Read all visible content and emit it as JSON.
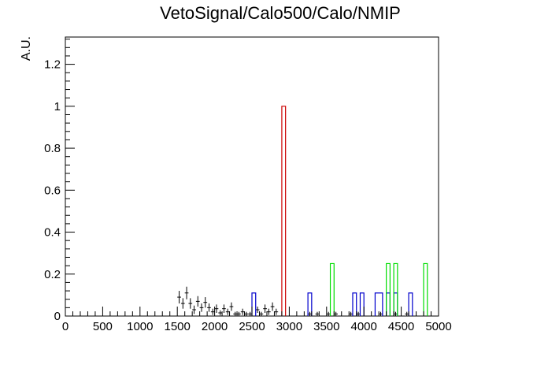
{
  "chart_data": {
    "type": "histogram",
    "title": "VetoSignal/Calo500/Calo/NMIP",
    "xlabel": "",
    "ylabel": "A.U.",
    "xlim": [
      0,
      5000
    ],
    "ylim": [
      0,
      1.33
    ],
    "x_ticks": [
      "0",
      "500",
      "1000",
      "1500",
      "2000",
      "2500",
      "3000",
      "3500",
      "4000",
      "4500",
      "5000"
    ],
    "y_ticks": [
      "0",
      "0.2",
      "0.4",
      "0.6",
      "0.8",
      "1",
      "1.2"
    ],
    "grid": false,
    "legend": "none",
    "series": [
      {
        "style": "errorbars",
        "color": "#000000",
        "bin_width": 50,
        "points": [
          {
            "x": 1525,
            "y": 0.09,
            "err": 0.03
          },
          {
            "x": 1575,
            "y": 0.06,
            "err": 0.025
          },
          {
            "x": 1625,
            "y": 0.11,
            "err": 0.03
          },
          {
            "x": 1675,
            "y": 0.06,
            "err": 0.025
          },
          {
            "x": 1725,
            "y": 0.03,
            "err": 0.02
          },
          {
            "x": 1775,
            "y": 0.07,
            "err": 0.025
          },
          {
            "x": 1825,
            "y": 0.04,
            "err": 0.02
          },
          {
            "x": 1875,
            "y": 0.065,
            "err": 0.025
          },
          {
            "x": 1925,
            "y": 0.04,
            "err": 0.02
          },
          {
            "x": 1975,
            "y": 0.02,
            "err": 0.015
          },
          {
            "x": 2025,
            "y": 0.035,
            "err": 0.02
          },
          {
            "x": 2075,
            "y": 0.015,
            "err": 0.012
          },
          {
            "x": 2125,
            "y": 0.035,
            "err": 0.02
          },
          {
            "x": 2175,
            "y": 0.02,
            "err": 0.015
          },
          {
            "x": 2225,
            "y": 0.045,
            "err": 0.02
          },
          {
            "x": 2275,
            "y": 0.01,
            "err": 0.01
          },
          {
            "x": 2325,
            "y": 0.01,
            "err": 0.01
          },
          {
            "x": 2375,
            "y": 0.02,
            "err": 0.015
          },
          {
            "x": 2425,
            "y": 0.01,
            "err": 0.01
          },
          {
            "x": 2475,
            "y": 0.01,
            "err": 0.01
          },
          {
            "x": 2575,
            "y": 0.03,
            "err": 0.015
          },
          {
            "x": 2625,
            "y": 0.01,
            "err": 0.01
          },
          {
            "x": 2675,
            "y": 0.035,
            "err": 0.02
          },
          {
            "x": 2725,
            "y": 0.02,
            "err": 0.015
          },
          {
            "x": 2775,
            "y": 0.045,
            "err": 0.02
          },
          {
            "x": 2825,
            "y": 0.02,
            "err": 0.015
          },
          {
            "x": 3275,
            "y": 0.01,
            "err": 0.01
          },
          {
            "x": 3375,
            "y": 0.01,
            "err": 0.01
          },
          {
            "x": 3525,
            "y": 0.01,
            "err": 0.01
          },
          {
            "x": 3625,
            "y": 0.01,
            "err": 0.01
          },
          {
            "x": 3825,
            "y": 0.01,
            "err": 0.01
          },
          {
            "x": 3925,
            "y": 0.01,
            "err": 0.01
          },
          {
            "x": 4225,
            "y": 0.01,
            "err": 0.01
          },
          {
            "x": 4425,
            "y": 0.01,
            "err": 0.01
          },
          {
            "x": 4575,
            "y": 0.01,
            "err": 0.01
          }
        ]
      },
      {
        "style": "step",
        "color": "#0000cc",
        "bins": [
          {
            "x0": 2500,
            "x1": 2550,
            "y": 0.11
          },
          {
            "x0": 3250,
            "x1": 3300,
            "y": 0.11
          },
          {
            "x0": 3850,
            "x1": 3900,
            "y": 0.11
          },
          {
            "x0": 3950,
            "x1": 4000,
            "y": 0.11
          },
          {
            "x0": 4150,
            "x1": 4250,
            "y": 0.11
          },
          {
            "x0": 4300,
            "x1": 4350,
            "y": 0.11
          },
          {
            "x0": 4400,
            "x1": 4450,
            "y": 0.11
          },
          {
            "x0": 4600,
            "x1": 4650,
            "y": 0.11
          }
        ]
      },
      {
        "style": "step",
        "color": "#cc0000",
        "bins": [
          {
            "x0": 2900,
            "x1": 2950,
            "y": 1.0
          }
        ]
      },
      {
        "style": "step",
        "color": "#00dd00",
        "bins": [
          {
            "x0": 3550,
            "x1": 3600,
            "y": 0.25
          },
          {
            "x0": 4300,
            "x1": 4350,
            "y": 0.25
          },
          {
            "x0": 4400,
            "x1": 4450,
            "y": 0.25
          },
          {
            "x0": 4800,
            "x1": 4850,
            "y": 0.25
          }
        ]
      }
    ]
  }
}
